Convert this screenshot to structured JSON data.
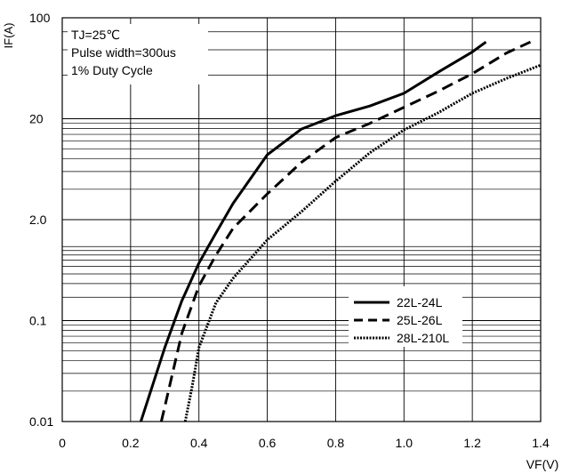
{
  "chart_data": {
    "type": "line",
    "xlabel": "VF(V)",
    "ylabel": "IF(A)",
    "x_ticks": [
      "0",
      "0.2",
      "0.4",
      "0.6",
      "0.8",
      "1.0",
      "1.2",
      "1.4"
    ],
    "x_tick_values": [
      0,
      0.2,
      0.4,
      0.6,
      0.8,
      1.0,
      1.2,
      1.4
    ],
    "xlim": [
      0,
      1.4
    ],
    "y_scale": "piecewise-log",
    "y_ticks": [
      "0.01",
      "0.1",
      "2.0",
      "20",
      "100"
    ],
    "y_tick_values": [
      0.01,
      0.1,
      2.0,
      20,
      100
    ],
    "grid": true,
    "annotation": [
      "TJ=25℃",
      "Pulse width=300us",
      "1% Duty Cycle"
    ],
    "legend_position": "bottom-right",
    "series": [
      {
        "name": "22L-24L",
        "style": "solid",
        "x": [
          0.23,
          0.3,
          0.35,
          0.4,
          0.45,
          0.5,
          0.6,
          0.7,
          0.8,
          0.9,
          1.0,
          1.1,
          1.2,
          1.24
        ],
        "y": [
          0.01,
          0.054,
          0.18,
          0.55,
          1.35,
          2.9,
          8.8,
          15.8,
          21,
          24.5,
          30,
          42,
          58,
          68
        ]
      },
      {
        "name": "25L-26L",
        "style": "dashed",
        "x": [
          0.29,
          0.3,
          0.35,
          0.4,
          0.45,
          0.5,
          0.6,
          0.7,
          0.8,
          0.9,
          1.0,
          1.1,
          1.2,
          1.3,
          1.37
        ],
        "y": [
          0.01,
          0.014,
          0.075,
          0.28,
          0.7,
          1.55,
          3.6,
          7.4,
          13,
          18,
          24,
          31,
          41,
          57,
          68
        ]
      },
      {
        "name": "28L-210L",
        "style": "dotted",
        "x": [
          0.36,
          0.38,
          0.4,
          0.45,
          0.5,
          0.6,
          0.7,
          0.8,
          0.9,
          1.0,
          1.1,
          1.2,
          1.3,
          1.4
        ],
        "y": [
          0.01,
          0.022,
          0.054,
          0.17,
          0.35,
          1.1,
          2.4,
          4.8,
          9.2,
          15.5,
          22,
          30,
          38,
          47
        ]
      }
    ]
  }
}
